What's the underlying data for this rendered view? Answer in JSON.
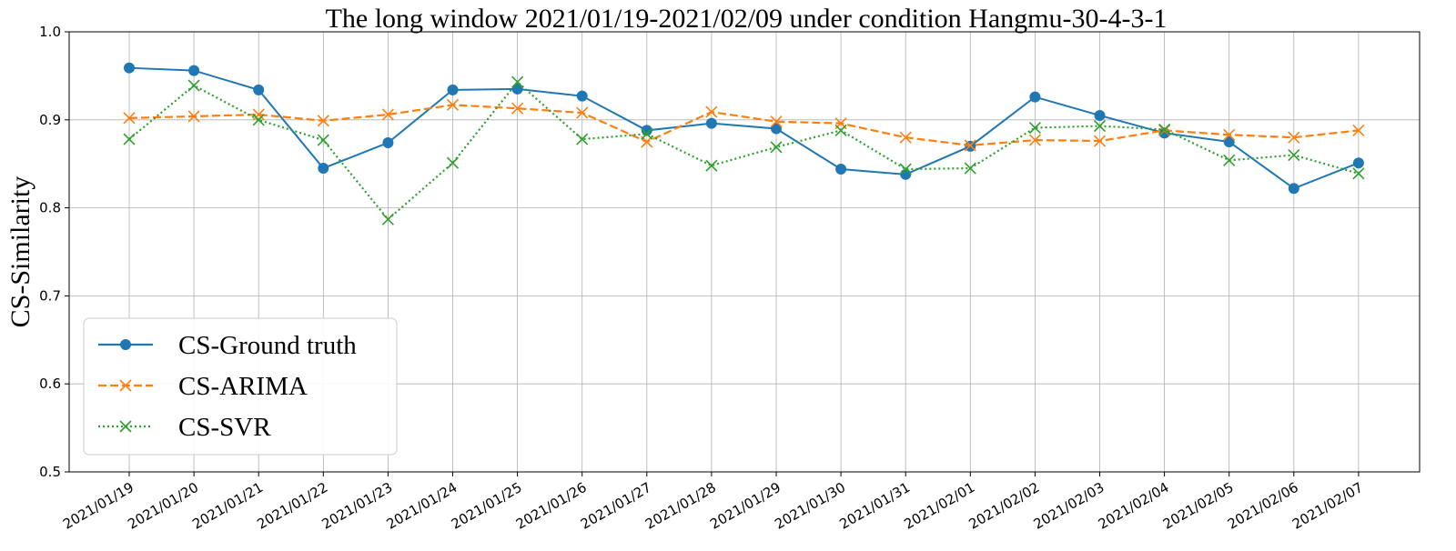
{
  "chart_data": {
    "type": "line",
    "title": "The long window 2021/01/19-2021/02/09 under condition Hangmu-30-4-3-1",
    "xlabel": "",
    "ylabel": "CS-Similarity",
    "ylim": [
      0.5,
      1.0
    ],
    "yticks": [
      "0.5",
      "0.6",
      "0.7",
      "0.8",
      "0.9",
      "1.0"
    ],
    "grid": true,
    "legend_position": "lower-left",
    "categories": [
      "2021/01/19",
      "2021/01/20",
      "2021/01/21",
      "2021/01/22",
      "2021/01/23",
      "2021/01/24",
      "2021/01/25",
      "2021/01/26",
      "2021/01/27",
      "2021/01/28",
      "2021/01/29",
      "2021/01/30",
      "2021/01/31",
      "2021/02/01",
      "2021/02/02",
      "2021/02/03",
      "2021/02/04",
      "2021/02/05",
      "2021/02/06",
      "2021/02/07"
    ],
    "series": [
      {
        "name": "CS-Ground truth",
        "color": "#1f77b4",
        "style": "solid",
        "marker": "circle",
        "values": [
          0.959,
          0.956,
          0.934,
          0.845,
          0.874,
          0.934,
          0.935,
          0.927,
          0.888,
          0.896,
          0.89,
          0.844,
          0.838,
          0.87,
          0.926,
          0.905,
          0.885,
          0.875,
          0.822,
          0.851
        ]
      },
      {
        "name": "CS-ARIMA",
        "color": "#ff7f0e",
        "style": "dashed",
        "marker": "x",
        "values": [
          0.902,
          0.904,
          0.906,
          0.899,
          0.906,
          0.917,
          0.913,
          0.908,
          0.875,
          0.909,
          0.898,
          0.896,
          0.88,
          0.871,
          0.877,
          0.876,
          0.888,
          0.883,
          0.88,
          0.888
        ]
      },
      {
        "name": "CS-SVR",
        "color": "#2ca02c",
        "style": "dotted",
        "marker": "x",
        "values": [
          0.878,
          0.939,
          0.9,
          0.877,
          0.787,
          0.851,
          0.943,
          0.878,
          0.884,
          0.848,
          0.869,
          0.888,
          0.844,
          0.845,
          0.891,
          0.893,
          0.889,
          0.854,
          0.86,
          0.839
        ]
      }
    ]
  }
}
